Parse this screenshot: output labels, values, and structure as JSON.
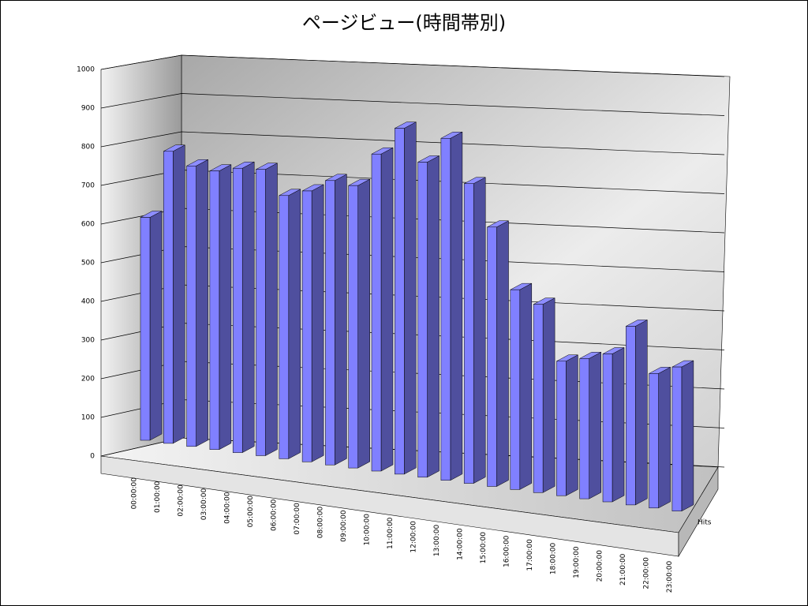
{
  "chart_data": {
    "type": "bar3d",
    "title": "ページビュー(時間帯別)",
    "categories": [
      "00:00:00",
      "01:00:00",
      "02:00:00",
      "03:00:00",
      "04:00:00",
      "05:00:00",
      "06:00:00",
      "07:00:00",
      "08:00:00",
      "09:00:00",
      "10:00:00",
      "11:00:00",
      "12:00:00",
      "13:00:00",
      "14:00:00",
      "15:00:00",
      "16:00:00",
      "17:00:00",
      "18:00:00",
      "19:00:00",
      "20:00:00",
      "21:00:00",
      "22:00:00",
      "23:00:00"
    ],
    "series": [
      {
        "name": "Hits",
        "color": "#8080ff",
        "values": [
          580,
          760,
          730,
          725,
          740,
          745,
          685,
          705,
          740,
          735,
          825,
          900,
          820,
          890,
          780,
          675,
          520,
          490,
          350,
          365,
          385,
          465,
          350,
          375
        ]
      }
    ],
    "ylim": [
      0,
      1000
    ],
    "yticks": [
      0,
      100,
      200,
      300,
      400,
      500,
      600,
      700,
      800,
      900,
      1000
    ],
    "grid": true
  }
}
